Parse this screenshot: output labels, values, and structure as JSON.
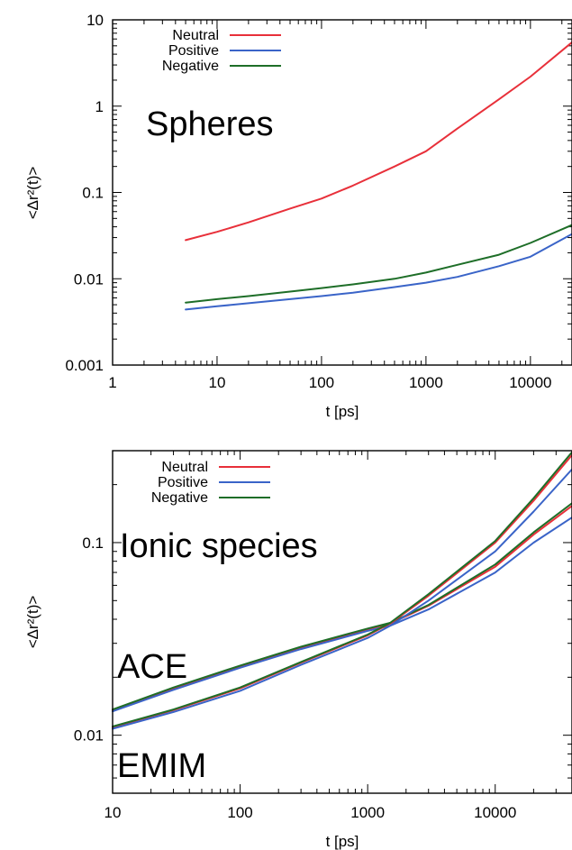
{
  "chart_data": [
    {
      "id": "spheres",
      "type": "line",
      "xscale": "log",
      "yscale": "log",
      "xlim": [
        1,
        25000
      ],
      "ylim": [
        0.001,
        10
      ],
      "xlabel": "t [ps]",
      "ylabel": "<Δr²(t)>",
      "xticks": [
        1,
        10,
        100,
        1000,
        10000
      ],
      "xtick_labels": [
        "1",
        "10",
        "100",
        "1000",
        "10000"
      ],
      "yticks": [
        0.001,
        0.01,
        0.1,
        1,
        10
      ],
      "ytick_labels": [
        "0.001",
        "0.01",
        "0.1",
        "1",
        "10"
      ],
      "annotations": [
        "Spheres"
      ],
      "legend_position": "top-left",
      "series": [
        {
          "name": "Neutral",
          "color": "#e8303a",
          "x": [
            5,
            10,
            20,
            50,
            100,
            200,
            500,
            1000,
            2000,
            5000,
            10000,
            25000
          ],
          "y": [
            0.028,
            0.035,
            0.045,
            0.065,
            0.085,
            0.12,
            0.2,
            0.3,
            0.55,
            1.2,
            2.2,
            5.5
          ]
        },
        {
          "name": "Positive",
          "color": "#3a64c8",
          "x": [
            5,
            10,
            20,
            50,
            100,
            200,
            500,
            1000,
            2000,
            5000,
            10000,
            25000
          ],
          "y": [
            0.0044,
            0.0048,
            0.0052,
            0.0058,
            0.0063,
            0.0069,
            0.008,
            0.009,
            0.0105,
            0.014,
            0.018,
            0.033
          ]
        },
        {
          "name": "Negative",
          "color": "#1e6e28",
          "x": [
            5,
            10,
            20,
            50,
            100,
            200,
            500,
            1000,
            2000,
            5000,
            10000,
            25000
          ],
          "y": [
            0.0053,
            0.0058,
            0.0063,
            0.0071,
            0.0078,
            0.0086,
            0.01,
            0.0118,
            0.0145,
            0.019,
            0.026,
            0.042
          ]
        }
      ]
    },
    {
      "id": "ionic",
      "type": "line",
      "xscale": "log",
      "yscale": "log",
      "xlim": [
        10,
        40000
      ],
      "ylim": [
        0.005,
        0.3
      ],
      "xlabel": "t [ps]",
      "ylabel": "<Δr²(t)>",
      "xticks": [
        10,
        100,
        1000,
        10000
      ],
      "xtick_labels": [
        "10",
        "100",
        "1000",
        "10000"
      ],
      "yticks": [
        0.01,
        0.1
      ],
      "ytick_labels": [
        "0.01",
        "0.1"
      ],
      "annotations": [
        "Ionic species",
        "ACE",
        "EMIM"
      ],
      "legend_position": "top-left",
      "series": [
        {
          "name": "Neutral",
          "group": "ACE",
          "color": "#e8303a",
          "x": [
            10,
            30,
            100,
            300,
            1000,
            1500,
            3000,
            10000,
            20000,
            40000
          ],
          "y": [
            0.0135,
            0.0175,
            0.0228,
            0.0285,
            0.0355,
            0.038,
            0.047,
            0.075,
            0.11,
            0.155
          ]
        },
        {
          "name": "Positive",
          "group": "ACE",
          "color": "#3a64c8",
          "x": [
            10,
            30,
            100,
            300,
            1000,
            1500,
            3000,
            10000,
            20000,
            40000
          ],
          "y": [
            0.0133,
            0.0172,
            0.0224,
            0.028,
            0.0348,
            0.037,
            0.045,
            0.07,
            0.1,
            0.135
          ]
        },
        {
          "name": "Negative",
          "group": "ACE",
          "color": "#1e6e28",
          "x": [
            10,
            30,
            100,
            300,
            1000,
            1500,
            3000,
            10000,
            20000,
            40000
          ],
          "y": [
            0.0136,
            0.0177,
            0.023,
            0.0288,
            0.0358,
            0.0383,
            0.0475,
            0.077,
            0.113,
            0.16
          ]
        },
        {
          "name": "Neutral",
          "group": "EMIM",
          "color": "#e8303a",
          "x": [
            10,
            30,
            100,
            300,
            1000,
            1500,
            3000,
            10000,
            20000,
            40000
          ],
          "y": [
            0.011,
            0.0135,
            0.0175,
            0.0238,
            0.033,
            0.038,
            0.053,
            0.1,
            0.165,
            0.285
          ]
        },
        {
          "name": "Positive",
          "group": "EMIM",
          "color": "#3a64c8",
          "x": [
            10,
            30,
            100,
            300,
            1000,
            1500,
            3000,
            10000,
            20000,
            40000
          ],
          "y": [
            0.0108,
            0.0132,
            0.017,
            0.0232,
            0.032,
            0.037,
            0.05,
            0.09,
            0.145,
            0.24
          ]
        },
        {
          "name": "Negative",
          "group": "EMIM",
          "color": "#1e6e28",
          "x": [
            10,
            30,
            100,
            300,
            1000,
            1500,
            3000,
            10000,
            20000,
            40000
          ],
          "y": [
            0.0111,
            0.0136,
            0.0177,
            0.024,
            0.0333,
            0.0383,
            0.054,
            0.102,
            0.17,
            0.295
          ]
        }
      ]
    }
  ],
  "legend_labels": [
    "Neutral",
    "Positive",
    "Negative"
  ]
}
